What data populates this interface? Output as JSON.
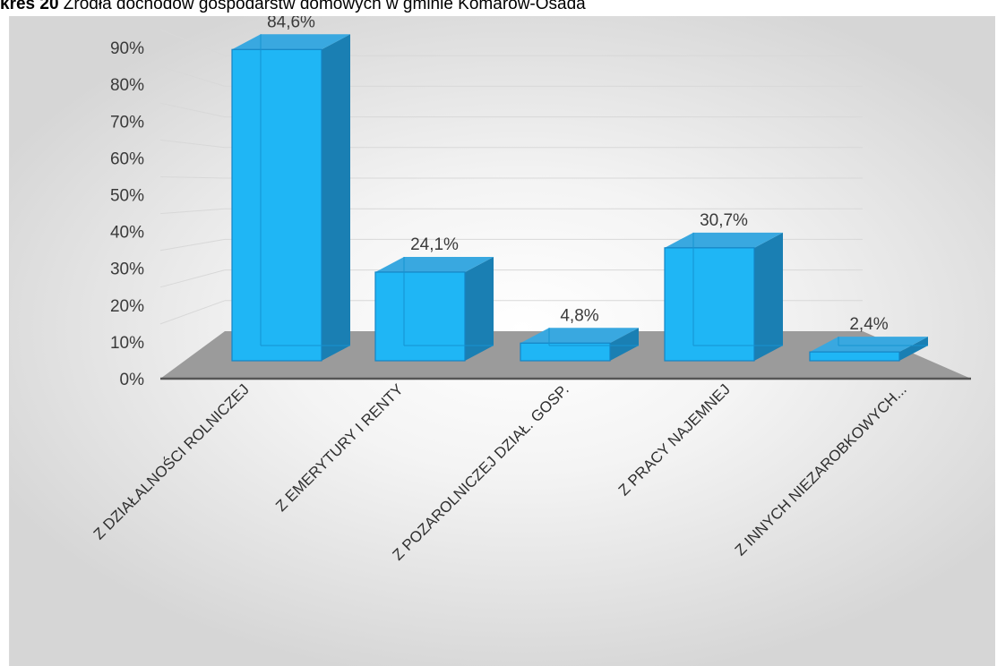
{
  "caption": {
    "prefix": "kres 20",
    "text": " Źródła dochodów gospodarstw domowych w gminie Komarów-Osada"
  },
  "colors": {
    "bar_front": "#1fb6f5",
    "bar_side": "#1a7fb3",
    "bar_top": "#39a8e0",
    "floor": "#9b9b9b",
    "gridline": "#d8d8d8"
  },
  "chart_data": {
    "type": "bar",
    "style": "3d-column",
    "categories": [
      "Z DZIAŁALNOŚCI ROLNICZEJ",
      "Z EMERYTURY I RENTY",
      "Z POZAROLNICZEJ DZIAŁ. GOSP.",
      "Z PRACY NAJEMNEJ",
      "Z INNYCH NIEZAROBKOWYCH..."
    ],
    "values": [
      84.6,
      24.1,
      4.8,
      30.7,
      2.4
    ],
    "data_labels": [
      "84,6%",
      "24,1%",
      "4,8%",
      "30,7%",
      "2,4%"
    ],
    "yticks": [
      "0%",
      "10%",
      "20%",
      "30%",
      "40%",
      "50%",
      "60%",
      "70%",
      "80%",
      "90%"
    ],
    "ylim": [
      0,
      90
    ],
    "title": "",
    "xlabel": "",
    "ylabel": "",
    "grid": true,
    "legend": "none"
  }
}
